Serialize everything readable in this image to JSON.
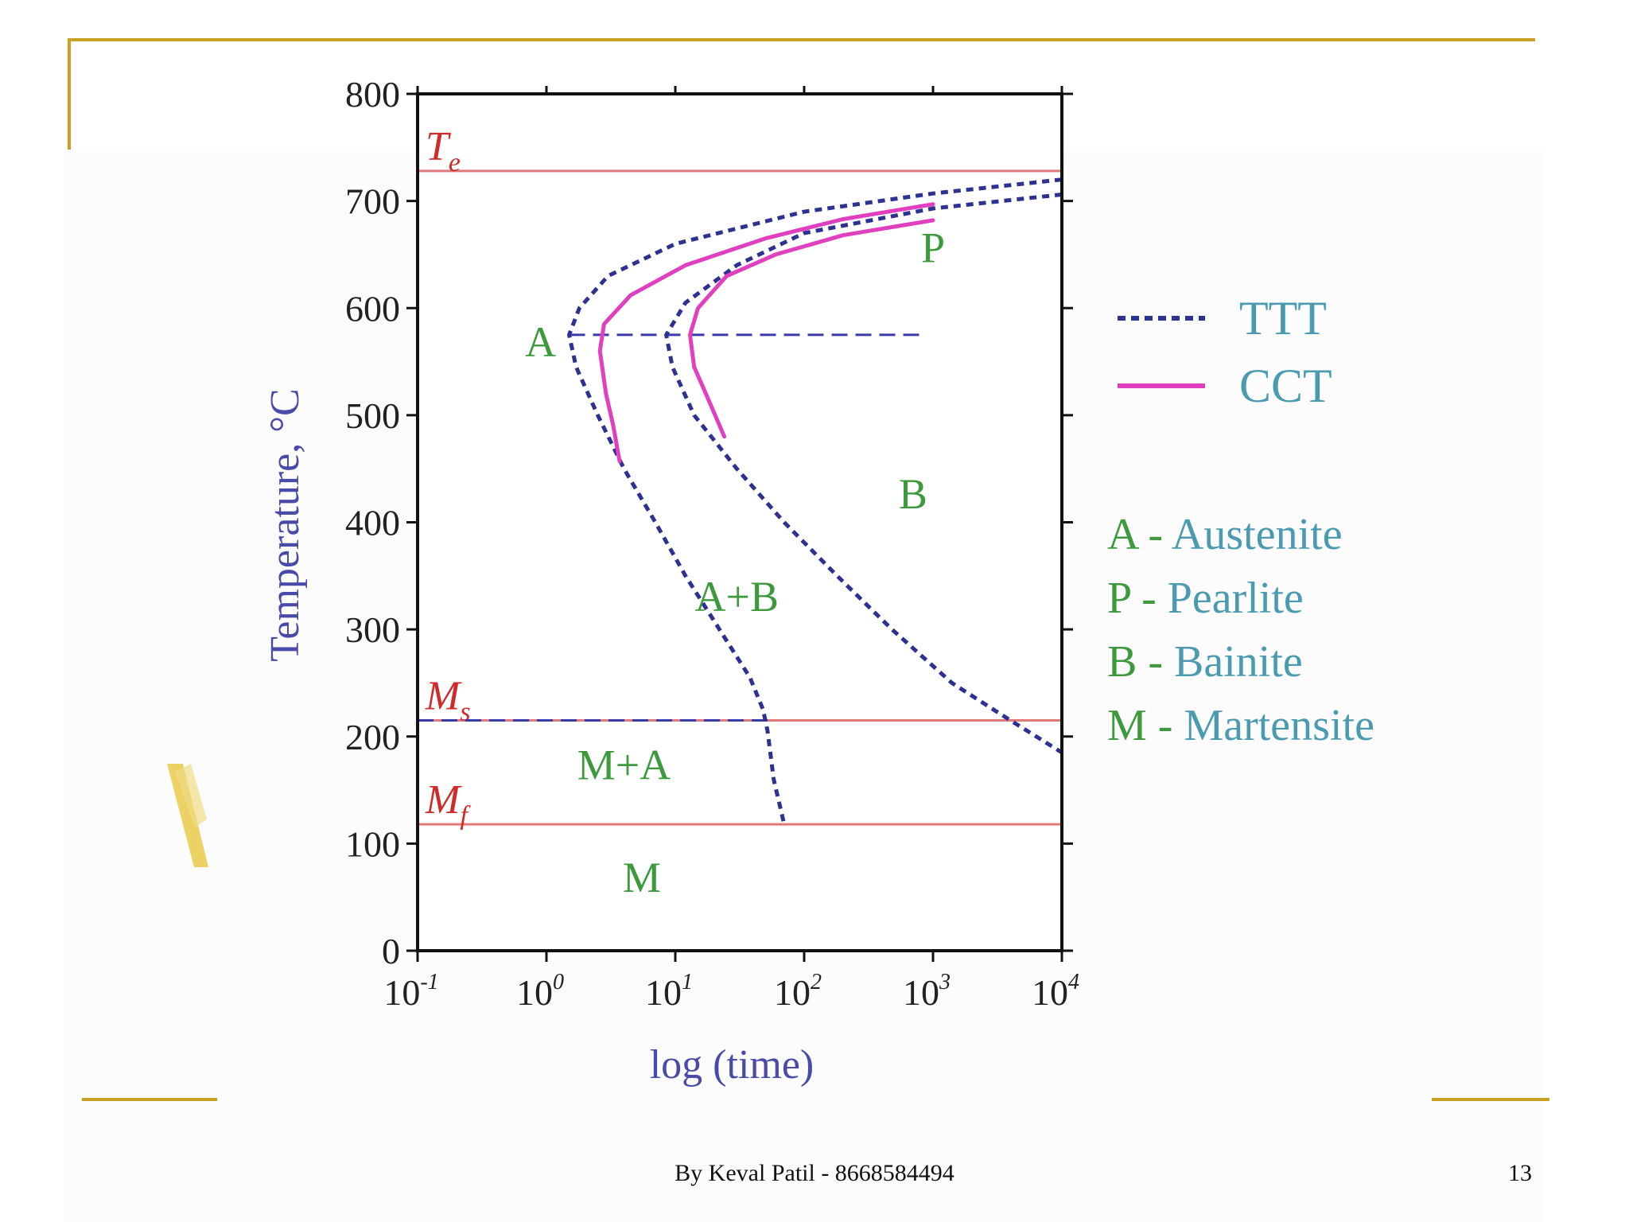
{
  "chart_data": {
    "type": "line",
    "title": "",
    "xlabel": "log (time)",
    "ylabel": "Temperature, °C",
    "xscale": "log",
    "xlim": [
      0.1,
      10000
    ],
    "ylim": [
      0,
      800
    ],
    "x_ticks": [
      {
        "base": "10",
        "exp": "-1",
        "value": 0.1
      },
      {
        "base": "10",
        "exp": "0",
        "value": 1
      },
      {
        "base": "10",
        "exp": "1",
        "value": 10
      },
      {
        "base": "10",
        "exp": "2",
        "value": 100
      },
      {
        "base": "10",
        "exp": "3",
        "value": 1000
      },
      {
        "base": "10",
        "exp": "4",
        "value": 10000
      }
    ],
    "y_ticks": [
      0,
      100,
      200,
      300,
      400,
      500,
      600,
      700,
      800
    ],
    "reference_lines": [
      {
        "main": "T",
        "sub": "e",
        "y": 728
      },
      {
        "main": "M",
        "sub": "s",
        "y": 215
      },
      {
        "main": "M",
        "sub": "f",
        "y": 118
      }
    ],
    "series": [
      {
        "name": "TTT",
        "style": "dotted",
        "color": "#2e3192",
        "segments": [
          [
            [
              10000,
              720
            ],
            [
              1000,
              707
            ],
            [
              100,
              690
            ],
            [
              10,
              660
            ],
            [
              3,
              630
            ],
            [
              1.8,
              600
            ],
            [
              1.5,
              575
            ],
            [
              1.7,
              545
            ],
            [
              2.5,
              500
            ],
            [
              4,
              450
            ],
            [
              7,
              400
            ],
            [
              12,
              350
            ],
            [
              22,
              300
            ],
            [
              38,
              255
            ],
            [
              48,
              225
            ],
            [
              52,
              205
            ],
            [
              58,
              160
            ],
            [
              70,
              118
            ]
          ],
          [
            [
              10000,
              706
            ],
            [
              1000,
              693
            ],
            [
              100,
              670
            ],
            [
              30,
              640
            ],
            [
              12,
              605
            ],
            [
              8.5,
              575
            ],
            [
              9.5,
              545
            ],
            [
              14,
              500
            ],
            [
              30,
              450
            ],
            [
              70,
              400
            ],
            [
              180,
              350
            ],
            [
              480,
              300
            ],
            [
              1400,
              250
            ],
            [
              4000,
              215
            ],
            [
              10000,
              185
            ]
          ]
        ]
      },
      {
        "name": "CCT",
        "style": "solid",
        "color": "#e040c0",
        "segments": [
          [
            [
              1000,
              697
            ],
            [
              200,
              683
            ],
            [
              50,
              665
            ],
            [
              12,
              640
            ],
            [
              4.5,
              612
            ],
            [
              2.8,
              585
            ],
            [
              2.6,
              560
            ],
            [
              2.9,
              520
            ],
            [
              3.3,
              490
            ],
            [
              3.7,
              457
            ]
          ],
          [
            [
              1000,
              682
            ],
            [
              200,
              668
            ],
            [
              60,
              650
            ],
            [
              25,
              630
            ],
            [
              15,
              600
            ],
            [
              13,
              575
            ],
            [
              14,
              545
            ],
            [
              18,
              515
            ],
            [
              24,
              480
            ]
          ]
        ]
      }
    ],
    "horizontal_dashed": [
      {
        "y": 575,
        "x_from": 1.5,
        "x_to": 800
      },
      {
        "y": 215,
        "x_from": 0.1,
        "x_to": 52
      }
    ],
    "region_labels": [
      {
        "text": "A",
        "x": 0.9,
        "y": 555
      },
      {
        "text": "P",
        "x": 1000,
        "y": 643
      },
      {
        "text": "B",
        "x": 700,
        "y": 413
      },
      {
        "text": "A+B",
        "x": 30,
        "y": 317
      },
      {
        "text": "M+A",
        "x": 4,
        "y": 160
      },
      {
        "text": "M",
        "x": 5.5,
        "y": 55
      }
    ],
    "legend": {
      "position": "right",
      "items": [
        {
          "label": "TTT",
          "style": "dotted",
          "color": "#2e3192"
        },
        {
          "label": "CCT",
          "style": "solid",
          "color": "#e040c0"
        }
      ]
    },
    "annotations": [
      {
        "letter": "A",
        "sep": "-",
        "name": "Austenite"
      },
      {
        "letter": "P",
        "sep": "-",
        "name": "Pearlite"
      },
      {
        "letter": "B",
        "sep": "-",
        "name": "Bainite"
      },
      {
        "letter": "M",
        "sep": "-",
        "name": "Martensite"
      }
    ],
    "colors": {
      "axis_label": "#4a4aa8",
      "region": "#3c9a3c",
      "legend_text": "#4a9ab0",
      "ref_line": "#e07a7a",
      "ref_label": "#d12a2a"
    }
  },
  "footer": {
    "author": "By Keval Patil - 8668584494",
    "page": "13"
  },
  "colors": {
    "accent_gold": "#c9a023"
  }
}
